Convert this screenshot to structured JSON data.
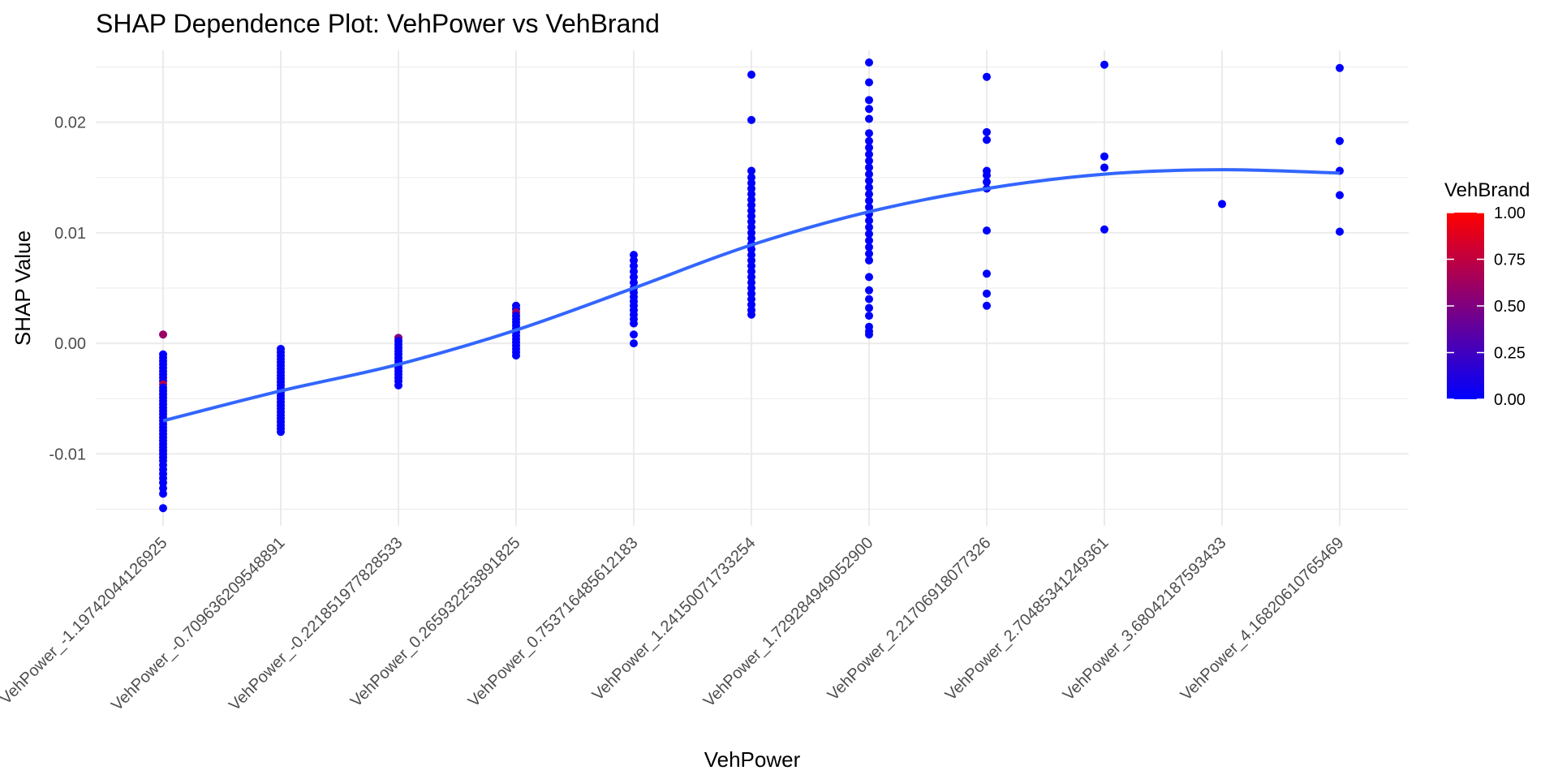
{
  "chart_data": {
    "type": "scatter",
    "title": "SHAP Dependence Plot: VehPower vs VehBrand",
    "xlabel": "VehPower",
    "ylabel": "SHAP Value",
    "ylim": [
      -0.0165,
      0.0265
    ],
    "yticks": [
      -0.01,
      0.0,
      0.01,
      0.02
    ],
    "ytick_labels": [
      "-0.01",
      "0.00",
      "0.01",
      "0.02"
    ],
    "grid": true,
    "legend_position": "right",
    "categories": [
      "VehPower_-1.19742044126925",
      "VehPower_-0.709636209548891",
      "VehPower_-0.221851977828533",
      "VehPower_0.265932253891825",
      "VehPower_0.753716485612183",
      "VehPower_1.24150071733254",
      "VehPower_1.729284949052900",
      "VehPower_2.21706918077326",
      "VehPower_2.70485341249361",
      "VehPower_3.68042187593433",
      "VehPower_4.16820610765469"
    ],
    "category_labels": [
      "VehPower_-1.19742044126925",
      "VehPower_-0.709636209548891",
      "VehPower_-0.221851977828533",
      "VehPower_0.265932253891825",
      "VehPower_0.753716485612183",
      "VehPower_1.24150071733254",
      "VehPower_1.729284949052900",
      "VehPower_2.21706918077326",
      "VehPower_2.70485341249361",
      "VehPower_3.68042187593433",
      "VehPower_4.16820610765469"
    ],
    "points": [
      {
        "cat": 0,
        "y": 0.0008,
        "c": 0.6
      },
      {
        "cat": 0,
        "y": -0.001,
        "c": 0.0
      },
      {
        "cat": 0,
        "y": -0.0013,
        "c": 0.0
      },
      {
        "cat": 0,
        "y": -0.0016,
        "c": 0.0
      },
      {
        "cat": 0,
        "y": -0.0019,
        "c": 0.0
      },
      {
        "cat": 0,
        "y": -0.0022,
        "c": 0.0
      },
      {
        "cat": 0,
        "y": -0.0025,
        "c": 0.0
      },
      {
        "cat": 0,
        "y": -0.0028,
        "c": 0.0
      },
      {
        "cat": 0,
        "y": -0.0031,
        "c": 0.0
      },
      {
        "cat": 0,
        "y": -0.0034,
        "c": 0.0
      },
      {
        "cat": 0,
        "y": -0.0037,
        "c": 0.7
      },
      {
        "cat": 0,
        "y": -0.004,
        "c": 0.0
      },
      {
        "cat": 0,
        "y": -0.0043,
        "c": 0.0
      },
      {
        "cat": 0,
        "y": -0.0046,
        "c": 0.0
      },
      {
        "cat": 0,
        "y": -0.0049,
        "c": 0.0
      },
      {
        "cat": 0,
        "y": -0.0052,
        "c": 0.0
      },
      {
        "cat": 0,
        "y": -0.0055,
        "c": 0.0
      },
      {
        "cat": 0,
        "y": -0.0058,
        "c": 0.0
      },
      {
        "cat": 0,
        "y": -0.0061,
        "c": 0.0
      },
      {
        "cat": 0,
        "y": -0.0064,
        "c": 0.0
      },
      {
        "cat": 0,
        "y": -0.0067,
        "c": 0.0
      },
      {
        "cat": 0,
        "y": -0.007,
        "c": 0.0
      },
      {
        "cat": 0,
        "y": -0.0073,
        "c": 0.0
      },
      {
        "cat": 0,
        "y": -0.0076,
        "c": 0.0
      },
      {
        "cat": 0,
        "y": -0.0079,
        "c": 0.0
      },
      {
        "cat": 0,
        "y": -0.0082,
        "c": 0.0
      },
      {
        "cat": 0,
        "y": -0.0085,
        "c": 0.0
      },
      {
        "cat": 0,
        "y": -0.0088,
        "c": 0.0
      },
      {
        "cat": 0,
        "y": -0.0091,
        "c": 0.0
      },
      {
        "cat": 0,
        "y": -0.0094,
        "c": 0.0
      },
      {
        "cat": 0,
        "y": -0.0097,
        "c": 0.0
      },
      {
        "cat": 0,
        "y": -0.01,
        "c": 0.0
      },
      {
        "cat": 0,
        "y": -0.0103,
        "c": 0.0
      },
      {
        "cat": 0,
        "y": -0.0106,
        "c": 0.0
      },
      {
        "cat": 0,
        "y": -0.011,
        "c": 0.0
      },
      {
        "cat": 0,
        "y": -0.0114,
        "c": 0.0
      },
      {
        "cat": 0,
        "y": -0.0118,
        "c": 0.0
      },
      {
        "cat": 0,
        "y": -0.0122,
        "c": 0.0
      },
      {
        "cat": 0,
        "y": -0.0126,
        "c": 0.0
      },
      {
        "cat": 0,
        "y": -0.0131,
        "c": 0.0
      },
      {
        "cat": 0,
        "y": -0.0136,
        "c": 0.0
      },
      {
        "cat": 0,
        "y": -0.0149,
        "c": 0.0
      },
      {
        "cat": 1,
        "y": -0.0005,
        "c": 0.0
      },
      {
        "cat": 1,
        "y": -0.0008,
        "c": 0.0
      },
      {
        "cat": 1,
        "y": -0.0011,
        "c": 0.0
      },
      {
        "cat": 1,
        "y": -0.0014,
        "c": 0.0
      },
      {
        "cat": 1,
        "y": -0.0017,
        "c": 0.0
      },
      {
        "cat": 1,
        "y": -0.002,
        "c": 0.0
      },
      {
        "cat": 1,
        "y": -0.0023,
        "c": 0.0
      },
      {
        "cat": 1,
        "y": -0.0026,
        "c": 0.0
      },
      {
        "cat": 1,
        "y": -0.0029,
        "c": 0.0
      },
      {
        "cat": 1,
        "y": -0.0032,
        "c": 0.0
      },
      {
        "cat": 1,
        "y": -0.0035,
        "c": 0.0
      },
      {
        "cat": 1,
        "y": -0.0038,
        "c": 0.0
      },
      {
        "cat": 1,
        "y": -0.0041,
        "c": 0.0
      },
      {
        "cat": 1,
        "y": -0.0044,
        "c": 0.0
      },
      {
        "cat": 1,
        "y": -0.0047,
        "c": 0.0
      },
      {
        "cat": 1,
        "y": -0.005,
        "c": 0.0
      },
      {
        "cat": 1,
        "y": -0.0053,
        "c": 0.0
      },
      {
        "cat": 1,
        "y": -0.0056,
        "c": 0.0
      },
      {
        "cat": 1,
        "y": -0.0059,
        "c": 0.0
      },
      {
        "cat": 1,
        "y": -0.0062,
        "c": 0.0
      },
      {
        "cat": 1,
        "y": -0.0065,
        "c": 0.0
      },
      {
        "cat": 1,
        "y": -0.0068,
        "c": 0.0
      },
      {
        "cat": 1,
        "y": -0.0071,
        "c": 0.0
      },
      {
        "cat": 1,
        "y": -0.0074,
        "c": 0.0
      },
      {
        "cat": 1,
        "y": -0.0077,
        "c": 0.0
      },
      {
        "cat": 1,
        "y": -0.008,
        "c": 0.0
      },
      {
        "cat": 2,
        "y": 0.0005,
        "c": 0.5
      },
      {
        "cat": 2,
        "y": 0.0002,
        "c": 0.0
      },
      {
        "cat": 2,
        "y": -0.0001,
        "c": 0.0
      },
      {
        "cat": 2,
        "y": -0.0004,
        "c": 0.0
      },
      {
        "cat": 2,
        "y": -0.0007,
        "c": 0.0
      },
      {
        "cat": 2,
        "y": -0.001,
        "c": 0.0
      },
      {
        "cat": 2,
        "y": -0.0013,
        "c": 0.0
      },
      {
        "cat": 2,
        "y": -0.0016,
        "c": 0.0
      },
      {
        "cat": 2,
        "y": -0.0019,
        "c": 0.0
      },
      {
        "cat": 2,
        "y": -0.0022,
        "c": 0.0
      },
      {
        "cat": 2,
        "y": -0.0025,
        "c": 0.0
      },
      {
        "cat": 2,
        "y": -0.0028,
        "c": 0.0
      },
      {
        "cat": 2,
        "y": -0.0031,
        "c": 0.0
      },
      {
        "cat": 2,
        "y": -0.0034,
        "c": 0.0
      },
      {
        "cat": 2,
        "y": -0.0038,
        "c": 0.0
      },
      {
        "cat": 3,
        "y": 0.0034,
        "c": 0.0
      },
      {
        "cat": 3,
        "y": 0.0031,
        "c": 0.0
      },
      {
        "cat": 3,
        "y": 0.0028,
        "c": 0.6
      },
      {
        "cat": 3,
        "y": 0.0025,
        "c": 0.0
      },
      {
        "cat": 3,
        "y": 0.0022,
        "c": 0.0
      },
      {
        "cat": 3,
        "y": 0.0019,
        "c": 0.0
      },
      {
        "cat": 3,
        "y": 0.0016,
        "c": 0.0
      },
      {
        "cat": 3,
        "y": 0.0013,
        "c": 0.0
      },
      {
        "cat": 3,
        "y": 0.001,
        "c": 0.0
      },
      {
        "cat": 3,
        "y": 0.0007,
        "c": 0.0
      },
      {
        "cat": 3,
        "y": 0.0004,
        "c": 0.0
      },
      {
        "cat": 3,
        "y": 0.0001,
        "c": 0.0
      },
      {
        "cat": 3,
        "y": -0.0002,
        "c": 0.0
      },
      {
        "cat": 3,
        "y": -0.0005,
        "c": 0.0
      },
      {
        "cat": 3,
        "y": -0.0008,
        "c": 0.0
      },
      {
        "cat": 3,
        "y": -0.0011,
        "c": 0.0
      },
      {
        "cat": 4,
        "y": 0.008,
        "c": 0.0
      },
      {
        "cat": 4,
        "y": 0.0075,
        "c": 0.0
      },
      {
        "cat": 4,
        "y": 0.007,
        "c": 0.0
      },
      {
        "cat": 4,
        "y": 0.0065,
        "c": 0.0
      },
      {
        "cat": 4,
        "y": 0.006,
        "c": 0.0
      },
      {
        "cat": 4,
        "y": 0.0055,
        "c": 0.0
      },
      {
        "cat": 4,
        "y": 0.005,
        "c": 0.0
      },
      {
        "cat": 4,
        "y": 0.0046,
        "c": 0.0
      },
      {
        "cat": 4,
        "y": 0.0042,
        "c": 0.0
      },
      {
        "cat": 4,
        "y": 0.0038,
        "c": 0.0
      },
      {
        "cat": 4,
        "y": 0.0034,
        "c": 0.0
      },
      {
        "cat": 4,
        "y": 0.003,
        "c": 0.0
      },
      {
        "cat": 4,
        "y": 0.0026,
        "c": 0.0
      },
      {
        "cat": 4,
        "y": 0.0022,
        "c": 0.0
      },
      {
        "cat": 4,
        "y": 0.0018,
        "c": 0.0
      },
      {
        "cat": 4,
        "y": 0.0008,
        "c": 0.0
      },
      {
        "cat": 4,
        "y": 0.0,
        "c": 0.0
      },
      {
        "cat": 5,
        "y": 0.0243,
        "c": 0.0
      },
      {
        "cat": 5,
        "y": 0.0202,
        "c": 0.0
      },
      {
        "cat": 5,
        "y": 0.0156,
        "c": 0.0
      },
      {
        "cat": 5,
        "y": 0.015,
        "c": 0.0
      },
      {
        "cat": 5,
        "y": 0.0145,
        "c": 0.0
      },
      {
        "cat": 5,
        "y": 0.014,
        "c": 0.0
      },
      {
        "cat": 5,
        "y": 0.0135,
        "c": 0.0
      },
      {
        "cat": 5,
        "y": 0.013,
        "c": 0.0
      },
      {
        "cat": 5,
        "y": 0.0125,
        "c": 0.0
      },
      {
        "cat": 5,
        "y": 0.012,
        "c": 0.0
      },
      {
        "cat": 5,
        "y": 0.0115,
        "c": 0.0
      },
      {
        "cat": 5,
        "y": 0.011,
        "c": 0.0
      },
      {
        "cat": 5,
        "y": 0.0105,
        "c": 0.0
      },
      {
        "cat": 5,
        "y": 0.01,
        "c": 0.0
      },
      {
        "cat": 5,
        "y": 0.0095,
        "c": 0.0
      },
      {
        "cat": 5,
        "y": 0.009,
        "c": 0.0
      },
      {
        "cat": 5,
        "y": 0.0085,
        "c": 0.0
      },
      {
        "cat": 5,
        "y": 0.008,
        "c": 0.0
      },
      {
        "cat": 5,
        "y": 0.0075,
        "c": 0.0
      },
      {
        "cat": 5,
        "y": 0.007,
        "c": 0.0
      },
      {
        "cat": 5,
        "y": 0.0065,
        "c": 0.0
      },
      {
        "cat": 5,
        "y": 0.006,
        "c": 0.0
      },
      {
        "cat": 5,
        "y": 0.0055,
        "c": 0.0
      },
      {
        "cat": 5,
        "y": 0.005,
        "c": 0.0
      },
      {
        "cat": 5,
        "y": 0.0045,
        "c": 0.0
      },
      {
        "cat": 5,
        "y": 0.004,
        "c": 0.0
      },
      {
        "cat": 5,
        "y": 0.0035,
        "c": 0.0
      },
      {
        "cat": 5,
        "y": 0.003,
        "c": 0.0
      },
      {
        "cat": 5,
        "y": 0.0026,
        "c": 0.0
      },
      {
        "cat": 6,
        "y": 0.0254,
        "c": 0.0
      },
      {
        "cat": 6,
        "y": 0.0236,
        "c": 0.0
      },
      {
        "cat": 6,
        "y": 0.022,
        "c": 0.0
      },
      {
        "cat": 6,
        "y": 0.0212,
        "c": 0.0
      },
      {
        "cat": 6,
        "y": 0.0203,
        "c": 0.0
      },
      {
        "cat": 6,
        "y": 0.019,
        "c": 0.0
      },
      {
        "cat": 6,
        "y": 0.0183,
        "c": 0.0
      },
      {
        "cat": 6,
        "y": 0.0177,
        "c": 0.0
      },
      {
        "cat": 6,
        "y": 0.0171,
        "c": 0.0
      },
      {
        "cat": 6,
        "y": 0.0165,
        "c": 0.0
      },
      {
        "cat": 6,
        "y": 0.0159,
        "c": 0.0
      },
      {
        "cat": 6,
        "y": 0.0153,
        "c": 0.0
      },
      {
        "cat": 6,
        "y": 0.0147,
        "c": 0.0
      },
      {
        "cat": 6,
        "y": 0.0141,
        "c": 0.0
      },
      {
        "cat": 6,
        "y": 0.0135,
        "c": 0.0
      },
      {
        "cat": 6,
        "y": 0.0129,
        "c": 0.0
      },
      {
        "cat": 6,
        "y": 0.0123,
        "c": 0.0
      },
      {
        "cat": 6,
        "y": 0.0117,
        "c": 0.0
      },
      {
        "cat": 6,
        "y": 0.0111,
        "c": 0.0
      },
      {
        "cat": 6,
        "y": 0.0105,
        "c": 0.0
      },
      {
        "cat": 6,
        "y": 0.0099,
        "c": 0.0
      },
      {
        "cat": 6,
        "y": 0.0093,
        "c": 0.0
      },
      {
        "cat": 6,
        "y": 0.0087,
        "c": 0.0
      },
      {
        "cat": 6,
        "y": 0.0081,
        "c": 0.0
      },
      {
        "cat": 6,
        "y": 0.0075,
        "c": 0.0
      },
      {
        "cat": 6,
        "y": 0.006,
        "c": 0.0
      },
      {
        "cat": 6,
        "y": 0.0048,
        "c": 0.0
      },
      {
        "cat": 6,
        "y": 0.004,
        "c": 0.0
      },
      {
        "cat": 6,
        "y": 0.0032,
        "c": 0.0
      },
      {
        "cat": 6,
        "y": 0.0025,
        "c": 0.0
      },
      {
        "cat": 6,
        "y": 0.0015,
        "c": 0.0
      },
      {
        "cat": 6,
        "y": 0.0011,
        "c": 0.0
      },
      {
        "cat": 6,
        "y": 0.0008,
        "c": 0.0
      },
      {
        "cat": 7,
        "y": 0.0241,
        "c": 0.0
      },
      {
        "cat": 7,
        "y": 0.0191,
        "c": 0.0
      },
      {
        "cat": 7,
        "y": 0.0184,
        "c": 0.0
      },
      {
        "cat": 7,
        "y": 0.0156,
        "c": 0.0
      },
      {
        "cat": 7,
        "y": 0.0152,
        "c": 0.0
      },
      {
        "cat": 7,
        "y": 0.0146,
        "c": 0.0
      },
      {
        "cat": 7,
        "y": 0.014,
        "c": 0.0
      },
      {
        "cat": 7,
        "y": 0.0102,
        "c": 0.0
      },
      {
        "cat": 7,
        "y": 0.0063,
        "c": 0.0
      },
      {
        "cat": 7,
        "y": 0.0045,
        "c": 0.0
      },
      {
        "cat": 7,
        "y": 0.0034,
        "c": 0.0
      },
      {
        "cat": 8,
        "y": 0.0252,
        "c": 0.0
      },
      {
        "cat": 8,
        "y": 0.0169,
        "c": 0.0
      },
      {
        "cat": 8,
        "y": 0.0159,
        "c": 0.0
      },
      {
        "cat": 8,
        "y": 0.0103,
        "c": 0.0
      },
      {
        "cat": 9,
        "y": 0.0126,
        "c": 0.0
      },
      {
        "cat": 10,
        "y": 0.0249,
        "c": 0.0
      },
      {
        "cat": 10,
        "y": 0.0183,
        "c": 0.0
      },
      {
        "cat": 10,
        "y": 0.0156,
        "c": 0.0
      },
      {
        "cat": 10,
        "y": 0.0134,
        "c": 0.0
      },
      {
        "cat": 10,
        "y": 0.0101,
        "c": 0.0
      }
    ],
    "smooth_line": {
      "color": "#3366ff",
      "cats": [
        0,
        1,
        2,
        3,
        4,
        5,
        6,
        7,
        8,
        9,
        10
      ],
      "y": [
        -0.007,
        -0.0043,
        -0.0019,
        0.0012,
        0.005,
        0.0089,
        0.0119,
        0.014,
        0.0153,
        0.0157,
        0.0154
      ]
    },
    "colorbar": {
      "title": "VehBrand",
      "low_color": "#0000ff",
      "high_color": "#ff0000",
      "range": [
        0.0,
        1.0
      ],
      "ticks": [
        "1.00",
        "0.75",
        "0.50",
        "0.25",
        "0.00"
      ]
    },
    "colors": {
      "grid": "#ebebeb",
      "tick_text": "#4d4d4d"
    }
  }
}
